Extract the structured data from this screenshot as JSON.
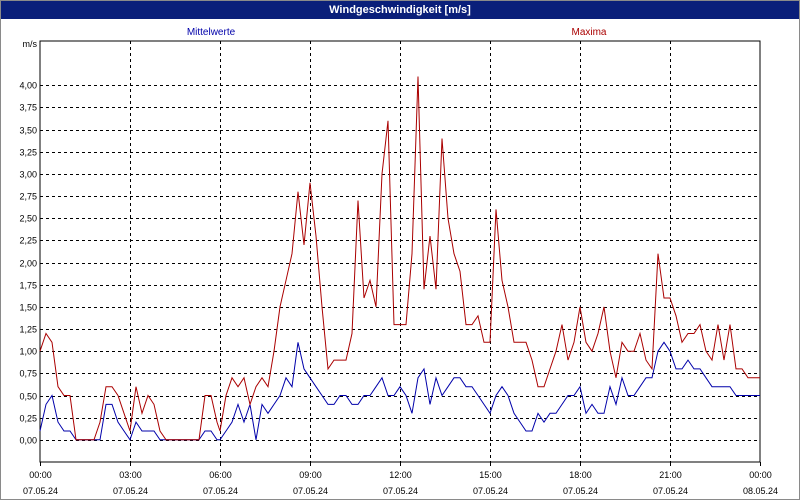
{
  "window": {
    "title": "Windgeschwindigkeit [m/s]"
  },
  "colors": {
    "series_mean": "#0000aa",
    "series_max": "#aa0000",
    "grid": "#000000",
    "title_bg": "#0a1f7a"
  },
  "chart_data": {
    "type": "line",
    "title": "Windgeschwindigkeit [m/s]",
    "ylabel": "m/s",
    "xlabel": "",
    "ylim": [
      -0.25,
      4.5
    ],
    "yticks": [
      "4,00",
      "3,75",
      "3,50",
      "3,25",
      "3,00",
      "2,75",
      "2,50",
      "2,25",
      "2,00",
      "1,75",
      "1,50",
      "1,25",
      "1,00",
      "0,75",
      "0,50",
      "0,25",
      "0,00"
    ],
    "ytick_values": [
      4.0,
      3.75,
      3.5,
      3.25,
      3.0,
      2.75,
      2.5,
      2.25,
      2.0,
      1.75,
      1.5,
      1.25,
      1.0,
      0.75,
      0.5,
      0.25,
      0.0
    ],
    "xlim_hours": [
      0,
      24
    ],
    "xticks": [
      {
        "time": "00:00",
        "date": "07.05.24",
        "h": 0
      },
      {
        "time": "03:00",
        "date": "07.05.24",
        "h": 3
      },
      {
        "time": "06:00",
        "date": "07.05.24",
        "h": 6
      },
      {
        "time": "09:00",
        "date": "07.05.24",
        "h": 9
      },
      {
        "time": "12:00",
        "date": "07.05.24",
        "h": 12
      },
      {
        "time": "15:00",
        "date": "07.05.24",
        "h": 15
      },
      {
        "time": "18:00",
        "date": "07.05.24",
        "h": 18
      },
      {
        "time": "21:00",
        "date": "07.05.24",
        "h": 21
      },
      {
        "time": "00:00",
        "date": "08.05.24",
        "h": 24
      }
    ],
    "grid": true,
    "series": [
      {
        "name": "Mittelwerte",
        "color": "#0000aa",
        "points": [
          [
            0,
            0.1
          ],
          [
            0.2,
            0.4
          ],
          [
            0.4,
            0.5
          ],
          [
            0.6,
            0.2
          ],
          [
            0.8,
            0.1
          ],
          [
            1.0,
            0.1
          ],
          [
            1.2,
            0.0
          ],
          [
            1.5,
            0.0
          ],
          [
            1.8,
            0.0
          ],
          [
            2.0,
            0.0
          ],
          [
            2.2,
            0.4
          ],
          [
            2.4,
            0.4
          ],
          [
            2.6,
            0.2
          ],
          [
            2.8,
            0.1
          ],
          [
            3.0,
            0.0
          ],
          [
            3.2,
            0.2
          ],
          [
            3.4,
            0.1
          ],
          [
            3.6,
            0.1
          ],
          [
            3.8,
            0.1
          ],
          [
            4.0,
            0.0
          ],
          [
            4.2,
            0.0
          ],
          [
            4.5,
            0.0
          ],
          [
            4.8,
            0.0
          ],
          [
            5.0,
            0.0
          ],
          [
            5.3,
            0.0
          ],
          [
            5.5,
            0.1
          ],
          [
            5.7,
            0.1
          ],
          [
            5.9,
            0.0
          ],
          [
            6.0,
            0.0
          ],
          [
            6.2,
            0.1
          ],
          [
            6.4,
            0.2
          ],
          [
            6.6,
            0.4
          ],
          [
            6.8,
            0.2
          ],
          [
            7.0,
            0.4
          ],
          [
            7.2,
            0.0
          ],
          [
            7.4,
            0.4
          ],
          [
            7.6,
            0.3
          ],
          [
            7.8,
            0.4
          ],
          [
            8.0,
            0.5
          ],
          [
            8.2,
            0.7
          ],
          [
            8.4,
            0.6
          ],
          [
            8.6,
            1.1
          ],
          [
            8.8,
            0.8
          ],
          [
            9.0,
            0.7
          ],
          [
            9.2,
            0.6
          ],
          [
            9.4,
            0.5
          ],
          [
            9.6,
            0.4
          ],
          [
            9.8,
            0.4
          ],
          [
            10.0,
            0.5
          ],
          [
            10.2,
            0.5
          ],
          [
            10.4,
            0.4
          ],
          [
            10.6,
            0.4
          ],
          [
            10.8,
            0.5
          ],
          [
            11.0,
            0.5
          ],
          [
            11.2,
            0.6
          ],
          [
            11.4,
            0.7
          ],
          [
            11.6,
            0.5
          ],
          [
            11.8,
            0.5
          ],
          [
            12.0,
            0.6
          ],
          [
            12.2,
            0.5
          ],
          [
            12.4,
            0.3
          ],
          [
            12.6,
            0.7
          ],
          [
            12.8,
            0.8
          ],
          [
            13.0,
            0.4
          ],
          [
            13.2,
            0.7
          ],
          [
            13.4,
            0.5
          ],
          [
            13.6,
            0.6
          ],
          [
            13.8,
            0.7
          ],
          [
            14.0,
            0.7
          ],
          [
            14.2,
            0.6
          ],
          [
            14.4,
            0.6
          ],
          [
            14.6,
            0.5
          ],
          [
            14.8,
            0.4
          ],
          [
            15.0,
            0.3
          ],
          [
            15.2,
            0.5
          ],
          [
            15.4,
            0.6
          ],
          [
            15.6,
            0.5
          ],
          [
            15.8,
            0.3
          ],
          [
            16.0,
            0.2
          ],
          [
            16.2,
            0.1
          ],
          [
            16.4,
            0.1
          ],
          [
            16.6,
            0.3
          ],
          [
            16.8,
            0.2
          ],
          [
            17.0,
            0.3
          ],
          [
            17.2,
            0.3
          ],
          [
            17.4,
            0.4
          ],
          [
            17.6,
            0.5
          ],
          [
            17.8,
            0.5
          ],
          [
            18.0,
            0.6
          ],
          [
            18.2,
            0.3
          ],
          [
            18.4,
            0.4
          ],
          [
            18.6,
            0.3
          ],
          [
            18.8,
            0.3
          ],
          [
            19.0,
            0.6
          ],
          [
            19.2,
            0.4
          ],
          [
            19.4,
            0.7
          ],
          [
            19.6,
            0.5
          ],
          [
            19.8,
            0.5
          ],
          [
            20.0,
            0.6
          ],
          [
            20.2,
            0.7
          ],
          [
            20.4,
            0.7
          ],
          [
            20.6,
            1.0
          ],
          [
            20.8,
            1.1
          ],
          [
            21.0,
            1.0
          ],
          [
            21.2,
            0.8
          ],
          [
            21.4,
            0.8
          ],
          [
            21.6,
            0.9
          ],
          [
            21.8,
            0.8
          ],
          [
            22.0,
            0.8
          ],
          [
            22.2,
            0.7
          ],
          [
            22.4,
            0.6
          ],
          [
            22.6,
            0.6
          ],
          [
            22.8,
            0.6
          ],
          [
            23.0,
            0.6
          ],
          [
            23.2,
            0.5
          ],
          [
            23.4,
            0.5
          ],
          [
            23.6,
            0.5
          ],
          [
            23.8,
            0.5
          ],
          [
            24.0,
            0.5
          ]
        ]
      },
      {
        "name": "Maxima",
        "color": "#aa0000",
        "points": [
          [
            0,
            1.0
          ],
          [
            0.2,
            1.2
          ],
          [
            0.4,
            1.1
          ],
          [
            0.6,
            0.6
          ],
          [
            0.8,
            0.5
          ],
          [
            1.0,
            0.5
          ],
          [
            1.2,
            0.0
          ],
          [
            1.5,
            0.0
          ],
          [
            1.8,
            0.0
          ],
          [
            2.0,
            0.2
          ],
          [
            2.2,
            0.6
          ],
          [
            2.4,
            0.6
          ],
          [
            2.6,
            0.5
          ],
          [
            2.8,
            0.3
          ],
          [
            3.0,
            0.1
          ],
          [
            3.2,
            0.6
          ],
          [
            3.4,
            0.3
          ],
          [
            3.6,
            0.5
          ],
          [
            3.8,
            0.4
          ],
          [
            4.0,
            0.1
          ],
          [
            4.2,
            0.0
          ],
          [
            4.5,
            0.0
          ],
          [
            4.8,
            0.0
          ],
          [
            5.0,
            0.0
          ],
          [
            5.3,
            0.0
          ],
          [
            5.5,
            0.5
          ],
          [
            5.7,
            0.5
          ],
          [
            5.9,
            0.2
          ],
          [
            6.0,
            0.1
          ],
          [
            6.2,
            0.5
          ],
          [
            6.4,
            0.7
          ],
          [
            6.6,
            0.6
          ],
          [
            6.8,
            0.7
          ],
          [
            7.0,
            0.4
          ],
          [
            7.2,
            0.6
          ],
          [
            7.4,
            0.7
          ],
          [
            7.6,
            0.6
          ],
          [
            7.8,
            1.0
          ],
          [
            8.0,
            1.5
          ],
          [
            8.2,
            1.8
          ],
          [
            8.4,
            2.1
          ],
          [
            8.6,
            2.8
          ],
          [
            8.8,
            2.2
          ],
          [
            9.0,
            2.9
          ],
          [
            9.2,
            2.3
          ],
          [
            9.4,
            1.5
          ],
          [
            9.6,
            0.8
          ],
          [
            9.8,
            0.9
          ],
          [
            10.0,
            0.9
          ],
          [
            10.2,
            0.9
          ],
          [
            10.4,
            1.2
          ],
          [
            10.6,
            2.7
          ],
          [
            10.8,
            1.6
          ],
          [
            11.0,
            1.8
          ],
          [
            11.2,
            1.5
          ],
          [
            11.4,
            3.0
          ],
          [
            11.6,
            3.6
          ],
          [
            11.8,
            1.3
          ],
          [
            12.0,
            1.3
          ],
          [
            12.2,
            1.3
          ],
          [
            12.4,
            2.1
          ],
          [
            12.6,
            4.1
          ],
          [
            12.8,
            1.7
          ],
          [
            13.0,
            2.3
          ],
          [
            13.2,
            1.7
          ],
          [
            13.4,
            3.4
          ],
          [
            13.6,
            2.5
          ],
          [
            13.8,
            2.1
          ],
          [
            14.0,
            1.9
          ],
          [
            14.2,
            1.3
          ],
          [
            14.4,
            1.3
          ],
          [
            14.6,
            1.4
          ],
          [
            14.8,
            1.1
          ],
          [
            15.0,
            1.1
          ],
          [
            15.2,
            2.6
          ],
          [
            15.4,
            1.8
          ],
          [
            15.6,
            1.5
          ],
          [
            15.8,
            1.1
          ],
          [
            16.0,
            1.1
          ],
          [
            16.2,
            1.1
          ],
          [
            16.4,
            0.9
          ],
          [
            16.6,
            0.6
          ],
          [
            16.8,
            0.6
          ],
          [
            17.0,
            0.8
          ],
          [
            17.2,
            1.0
          ],
          [
            17.4,
            1.3
          ],
          [
            17.6,
            0.9
          ],
          [
            17.8,
            1.1
          ],
          [
            18.0,
            1.5
          ],
          [
            18.2,
            1.1
          ],
          [
            18.4,
            1.0
          ],
          [
            18.6,
            1.2
          ],
          [
            18.8,
            1.5
          ],
          [
            19.0,
            1.0
          ],
          [
            19.2,
            0.7
          ],
          [
            19.4,
            1.1
          ],
          [
            19.6,
            1.0
          ],
          [
            19.8,
            1.0
          ],
          [
            20.0,
            1.2
          ],
          [
            20.2,
            0.9
          ],
          [
            20.4,
            0.8
          ],
          [
            20.6,
            2.1
          ],
          [
            20.8,
            1.6
          ],
          [
            21.0,
            1.6
          ],
          [
            21.2,
            1.4
          ],
          [
            21.4,
            1.1
          ],
          [
            21.6,
            1.2
          ],
          [
            21.8,
            1.2
          ],
          [
            22.0,
            1.3
          ],
          [
            22.2,
            1.0
          ],
          [
            22.4,
            0.9
          ],
          [
            22.6,
            1.3
          ],
          [
            22.8,
            0.9
          ],
          [
            23.0,
            1.3
          ],
          [
            23.2,
            0.8
          ],
          [
            23.4,
            0.8
          ],
          [
            23.6,
            0.7
          ],
          [
            23.8,
            0.7
          ],
          [
            24.0,
            0.7
          ]
        ]
      }
    ]
  }
}
